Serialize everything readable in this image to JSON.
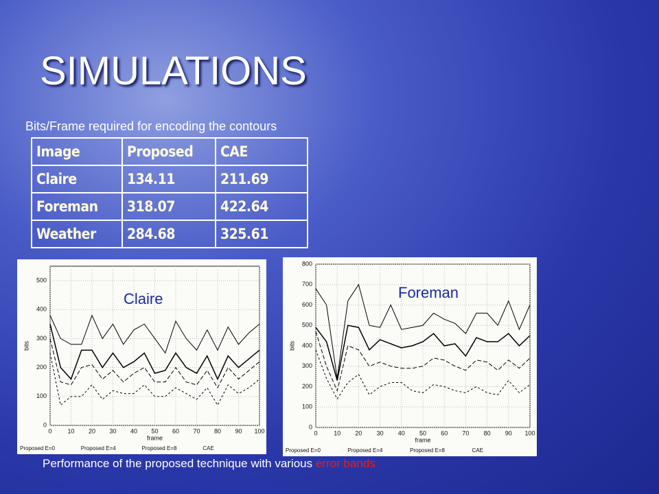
{
  "title": "SIMULATIONS",
  "table_caption": "Bits/Frame required for encoding the contours",
  "table": {
    "header": [
      "Image",
      "Proposed",
      "CAE"
    ],
    "rows": [
      [
        "Claire",
        134.11,
        211.69
      ],
      [
        "Foreman",
        318.07,
        422.64
      ],
      [
        "Weather",
        284.68,
        325.61
      ]
    ]
  },
  "charts": [
    {
      "type": "line",
      "label": "Claire",
      "x_label": "frame",
      "y_label": "bits",
      "x": [
        0,
        5,
        10,
        15,
        20,
        25,
        30,
        35,
        40,
        45,
        50,
        55,
        60,
        65,
        70,
        75,
        80,
        85,
        90,
        95,
        100
      ],
      "xlim": [
        0,
        100
      ],
      "xticks": [
        0,
        10,
        20,
        30,
        40,
        50,
        60,
        70,
        80,
        90,
        100
      ],
      "ylim": [
        0,
        550
      ],
      "yticks": [
        0,
        100,
        200,
        300,
        400,
        500
      ],
      "grid": true,
      "series": [
        {
          "name": "Proposed E=0",
          "color": "#000000",
          "values": [
            350,
            200,
            160,
            260,
            260,
            200,
            250,
            200,
            220,
            250,
            180,
            190,
            250,
            200,
            180,
            240,
            160,
            240,
            200,
            230,
            260
          ]
        },
        {
          "name": "Proposed E=4",
          "color": "#000000",
          "values": [
            300,
            150,
            140,
            200,
            210,
            160,
            190,
            150,
            180,
            200,
            150,
            150,
            200,
            150,
            140,
            190,
            130,
            200,
            160,
            190,
            220
          ]
        },
        {
          "name": "Proposed E=8",
          "color": "#000000",
          "values": [
            250,
            70,
            100,
            100,
            140,
            90,
            120,
            110,
            110,
            140,
            100,
            100,
            130,
            110,
            90,
            130,
            70,
            140,
            110,
            130,
            160
          ]
        },
        {
          "name": "CAE",
          "color": "#000000",
          "values": [
            380,
            300,
            280,
            280,
            380,
            300,
            350,
            280,
            330,
            350,
            300,
            250,
            360,
            300,
            260,
            330,
            260,
            340,
            280,
            320,
            350
          ]
        }
      ]
    },
    {
      "type": "line",
      "label": "Foreman",
      "x_label": "frame",
      "y_label": "bits",
      "x": [
        0,
        5,
        10,
        15,
        20,
        25,
        30,
        35,
        40,
        45,
        50,
        55,
        60,
        65,
        70,
        75,
        80,
        85,
        90,
        95,
        100
      ],
      "xlim": [
        0,
        100
      ],
      "xticks": [
        0,
        10,
        20,
        30,
        40,
        50,
        60,
        70,
        80,
        90,
        100
      ],
      "ylim": [
        0,
        800
      ],
      "yticks": [
        0,
        100,
        200,
        300,
        400,
        500,
        600,
        700,
        800
      ],
      "grid": true,
      "series": [
        {
          "name": "Proposed E=0",
          "color": "#000000",
          "values": [
            490,
            420,
            230,
            500,
            490,
            380,
            430,
            410,
            390,
            400,
            420,
            460,
            400,
            410,
            350,
            440,
            420,
            420,
            460,
            400,
            450
          ]
        },
        {
          "name": "Proposed E=4",
          "color": "#000000",
          "values": [
            470,
            300,
            180,
            400,
            380,
            300,
            320,
            300,
            290,
            290,
            300,
            340,
            330,
            300,
            280,
            330,
            320,
            280,
            330,
            290,
            340
          ]
        },
        {
          "name": "Proposed E=8",
          "color": "#000000",
          "values": [
            380,
            240,
            140,
            220,
            260,
            160,
            200,
            220,
            220,
            180,
            170,
            210,
            200,
            180,
            170,
            200,
            170,
            160,
            230,
            170,
            210
          ]
        },
        {
          "name": "CAE",
          "color": "#000000",
          "values": [
            680,
            600,
            240,
            620,
            700,
            500,
            490,
            600,
            480,
            490,
            500,
            560,
            530,
            510,
            460,
            560,
            560,
            500,
            620,
            480,
            600
          ]
        }
      ]
    }
  ],
  "caption": {
    "text": "Performance of the proposed technique with various ",
    "highlight": "error bands"
  }
}
